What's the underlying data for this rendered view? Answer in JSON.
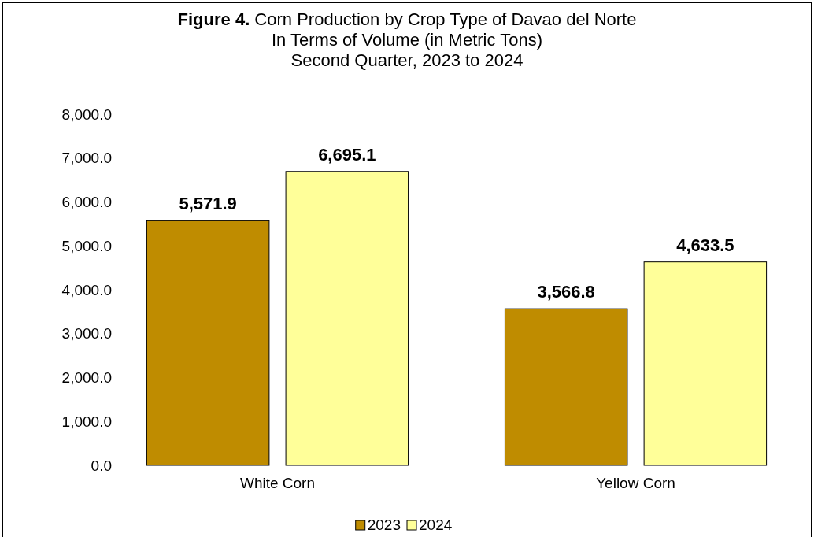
{
  "chart_data": {
    "type": "bar",
    "title": "Figure 4. Corn Production by Crop Type of Davao del Norte\nIn Terms of Volume (in Metric Tons)\nSecond Quarter, 2023 to 2024",
    "categories": [
      "White Corn",
      "Yellow Corn"
    ],
    "series": [
      {
        "name": "2023",
        "color": "#bf8c00",
        "values": [
          5571.9,
          3566.8
        ]
      },
      {
        "name": "2024",
        "color": "#ffff99",
        "values": [
          6695.1,
          4633.5
        ]
      }
    ],
    "value_labels": [
      [
        "5,571.9",
        "3,566.8"
      ],
      [
        "6,695.1",
        "4,633.5"
      ]
    ],
    "ylim": [
      0,
      8000
    ],
    "yticks": [
      {
        "value": 0,
        "label": "0.0"
      },
      {
        "value": 1000,
        "label": "1,000.0"
      },
      {
        "value": 2000,
        "label": "2,000.0"
      },
      {
        "value": 3000,
        "label": "3,000.0"
      },
      {
        "value": 4000,
        "label": "4,000.0"
      },
      {
        "value": 5000,
        "label": "5,000.0"
      },
      {
        "value": 6000,
        "label": "6,000.0"
      },
      {
        "value": 7000,
        "label": "7,000.0"
      },
      {
        "value": 8000,
        "label": "8,000.0"
      }
    ],
    "grid": false,
    "legend": "bottom"
  }
}
